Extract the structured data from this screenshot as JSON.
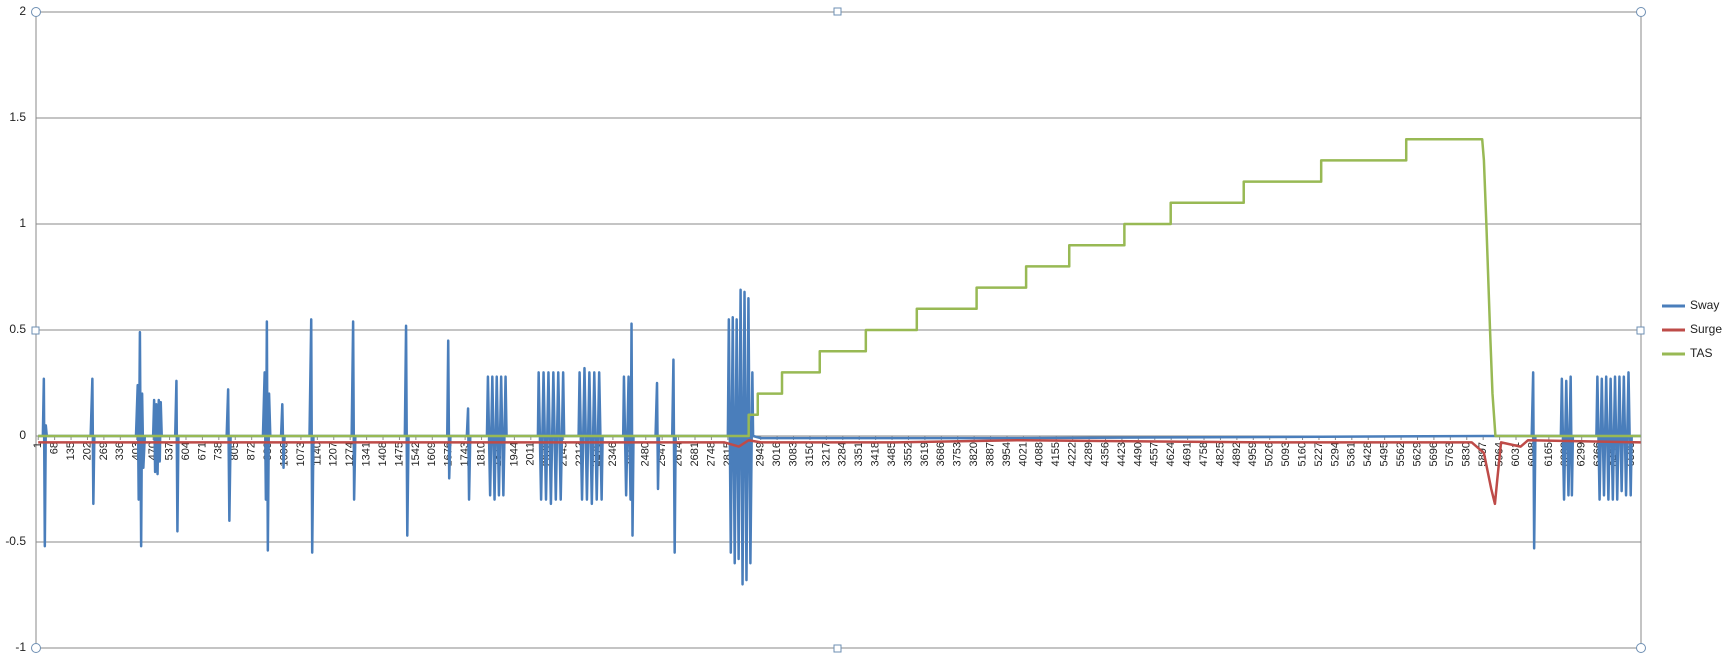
{
  "chart_data": {
    "type": "line",
    "xlim": [
      -8,
      6541
    ],
    "xticks": [
      1,
      68,
      135,
      202,
      269,
      336,
      403,
      470,
      537,
      604,
      671,
      738,
      805,
      872,
      939,
      1006,
      1073,
      1140,
      1207,
      1274,
      1341,
      1408,
      1475,
      1542,
      1609,
      1676,
      1743,
      1810,
      1877,
      1944,
      2011,
      2078,
      2145,
      2212,
      2279,
      2346,
      2413,
      2480,
      2547,
      2614,
      2681,
      2748,
      2815,
      2882,
      2949,
      3016,
      3083,
      3150,
      3217,
      3284,
      3351,
      3418,
      3485,
      3552,
      3619,
      3686,
      3753,
      3820,
      3887,
      3954,
      4021,
      4088,
      4155,
      4222,
      4289,
      4356,
      4423,
      4490,
      4557,
      4624,
      4691,
      4758,
      4825,
      4892,
      4959,
      5026,
      5093,
      5160,
      5227,
      5294,
      5361,
      5428,
      5495,
      5562,
      5629,
      5696,
      5763,
      5830,
      5897,
      5964,
      6031,
      6098,
      6165,
      6232,
      6299,
      6366,
      6433,
      6500
    ],
    "ylim": [
      -1,
      2
    ],
    "yticks": [
      -1,
      -0.5,
      0,
      0.5,
      1,
      1.5,
      2
    ],
    "grid": true,
    "legend": "right",
    "series": [
      {
        "name": "Sway",
        "color": "#4a7ebb",
        "x": [
          1,
          20,
          24,
          28,
          32,
          36,
          215,
          222,
          226,
          230,
          400,
          407,
          411,
          416,
          421,
          425,
          430,
          436,
          470,
          474,
          478,
          483,
          488,
          493,
          497,
          501,
          505,
          560,
          565,
          569,
          573,
          770,
          776,
          781,
          786,
          918,
          925,
          930,
          934,
          938,
          943,
          948,
          992,
          997,
          1002,
          1006,
          1108,
          1115,
          1119,
          1124,
          1280,
          1286,
          1290,
          1295,
          1497,
          1502,
          1507,
          1512,
          1670,
          1674,
          1678,
          1683,
          1750,
          1755,
          1759,
          1764,
          1832,
          1836,
          1845,
          1854,
          1863,
          1872,
          1881,
          1890,
          1899,
          1908,
          1912,
          2040,
          2043,
          2053,
          2063,
          2073,
          2083,
          2093,
          2103,
          2113,
          2123,
          2133,
          2143,
          2147,
          2206,
          2210,
          2220,
          2230,
          2240,
          2250,
          2260,
          2270,
          2280,
          2290,
          2300,
          2304,
          2388,
          2391,
          2400,
          2410,
          2418,
          2422,
          2426,
          2430,
          2520,
          2526,
          2530,
          2534,
          2588,
          2593,
          2598,
          2602,
          2815,
          2819,
          2827,
          2835,
          2843,
          2851,
          2859,
          2867,
          2875,
          2883,
          2891,
          2899,
          2907,
          2915,
          2918,
          2950,
          4000,
          5900,
          6095,
          6101,
          6105,
          6110,
          6214,
          6218,
          6227,
          6236,
          6245,
          6254,
          6259,
          6263,
          6359,
          6363,
          6372,
          6381,
          6390,
          6399,
          6408,
          6417,
          6426,
          6435,
          6444,
          6453,
          6462,
          6471,
          6480,
          6490,
          6499,
          6503,
          6540
        ],
        "values": [
          0,
          0,
          0.27,
          -0.52,
          0.05,
          0,
          0,
          0.27,
          -0.32,
          0,
          0,
          0.24,
          -0.3,
          0.49,
          -0.52,
          0.2,
          -0.15,
          0,
          0,
          0.17,
          -0.17,
          0.15,
          -0.18,
          0.17,
          -0.12,
          0.16,
          0,
          0,
          0.26,
          -0.45,
          0,
          0,
          0.22,
          -0.4,
          0,
          0,
          0.3,
          -0.3,
          0.54,
          -0.54,
          0.2,
          0,
          0,
          0.15,
          -0.15,
          0,
          0,
          0.55,
          -0.55,
          0,
          0,
          0.54,
          -0.3,
          0,
          0,
          0.52,
          -0.47,
          0,
          0,
          0.45,
          -0.2,
          0,
          0,
          0.13,
          -0.3,
          0,
          0,
          0.28,
          -0.28,
          0.28,
          -0.3,
          0.28,
          -0.28,
          0.28,
          -0.28,
          0.28,
          0,
          0,
          0.3,
          -0.3,
          0.3,
          -0.3,
          0.3,
          -0.32,
          0.3,
          -0.3,
          0.3,
          -0.3,
          0.3,
          0,
          0,
          0.3,
          -0.3,
          0.32,
          -0.3,
          0.3,
          -0.32,
          0.3,
          -0.3,
          0.3,
          -0.3,
          0,
          0,
          0.28,
          -0.28,
          0.28,
          -0.3,
          0.53,
          -0.47,
          0,
          0,
          0.25,
          -0.25,
          0,
          0,
          0.36,
          -0.55,
          0,
          0,
          0.55,
          -0.55,
          0.56,
          -0.6,
          0.55,
          -0.58,
          0.69,
          -0.7,
          0.68,
          -0.68,
          0.65,
          -0.6,
          0.3,
          0,
          -0.01,
          -0.01,
          0,
          0,
          0.3,
          -0.53,
          0,
          0,
          0.27,
          -0.3,
          0.26,
          -0.28,
          0.28,
          -0.28,
          0,
          0,
          0.28,
          -0.3,
          0.27,
          -0.28,
          0.28,
          -0.3,
          0.27,
          -0.3,
          0.28,
          -0.3,
          0.28,
          -0.26,
          0.28,
          -0.28,
          0.3,
          -0.28,
          0,
          0
        ]
      },
      {
        "name": "Surge",
        "color": "#be4b48",
        "x": [
          1,
          2800,
          2860,
          2900,
          2950,
          3500,
          4000,
          5000,
          5850,
          5900,
          5930,
          5945,
          5955,
          5970,
          6050,
          6080,
          6540
        ],
        "values": [
          -0.03,
          -0.03,
          -0.05,
          -0.02,
          -0.03,
          -0.03,
          -0.02,
          -0.03,
          -0.03,
          -0.08,
          -0.25,
          -0.32,
          -0.2,
          -0.03,
          -0.05,
          -0.02,
          -0.03
        ]
      },
      {
        "name": "TAS",
        "color": "#98b954",
        "x": [
          1,
          2900,
          2900,
          2937,
          2937,
          3036,
          3036,
          3190,
          3190,
          3378,
          3378,
          3586,
          3586,
          3830,
          3830,
          4032,
          4032,
          4208,
          4208,
          4433,
          4433,
          4622,
          4622,
          4920,
          4920,
          5236,
          5236,
          5583,
          5583,
          5893,
          5900,
          5910,
          5925,
          5935,
          5947,
          6540
        ],
        "values": [
          0,
          0,
          0.1,
          0.1,
          0.2,
          0.2,
          0.3,
          0.3,
          0.4,
          0.4,
          0.5,
          0.5,
          0.6,
          0.6,
          0.7,
          0.7,
          0.8,
          0.8,
          0.9,
          0.9,
          1,
          1,
          1.1,
          1.1,
          1.2,
          1.2,
          1.3,
          1.3,
          1.4,
          1.4,
          1.3,
          1,
          0.5,
          0.2,
          0,
          0
        ]
      }
    ]
  }
}
